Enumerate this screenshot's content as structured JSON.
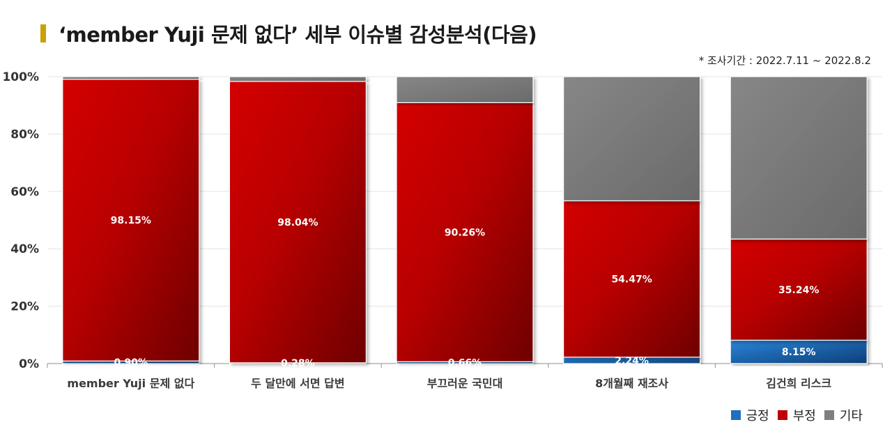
{
  "header": {
    "title": "‘member Yuji 문제 없다’ 세부 이슈별 감성분석(다음)",
    "period": "* 조사기간 : 2022.7.11 ~ 2022.8.2"
  },
  "chart_data": {
    "type": "bar",
    "stacked": true,
    "categories": [
      "member Yuji 문제 없다",
      "두 달만에 서면 답변",
      "부끄러운 국민대",
      "8개월째 재조사",
      "김건희 리스크"
    ],
    "series": [
      {
        "name": "긍정",
        "values": [
          0.9,
          0.28,
          0.66,
          2.24,
          8.15
        ],
        "labels": [
          "0.90%",
          "0.28%",
          "0.66%",
          "2.24%",
          "8.15%"
        ],
        "color": "#1f6fc0"
      },
      {
        "name": "부정",
        "values": [
          98.15,
          98.04,
          90.26,
          54.47,
          35.24
        ],
        "labels": [
          "98.15%",
          "98.04%",
          "90.26%",
          "54.47%",
          "35.24%"
        ],
        "color": "#c00000"
      },
      {
        "name": "기타",
        "values": [
          0.95,
          1.68,
          9.08,
          43.29,
          56.61
        ],
        "color": "#7f7f7f"
      }
    ],
    "ylim": [
      0,
      100
    ],
    "yticks": [
      "0%",
      "20%",
      "40%",
      "60%",
      "80%",
      "100%"
    ],
    "grid": true,
    "legend": "bottom-right"
  }
}
